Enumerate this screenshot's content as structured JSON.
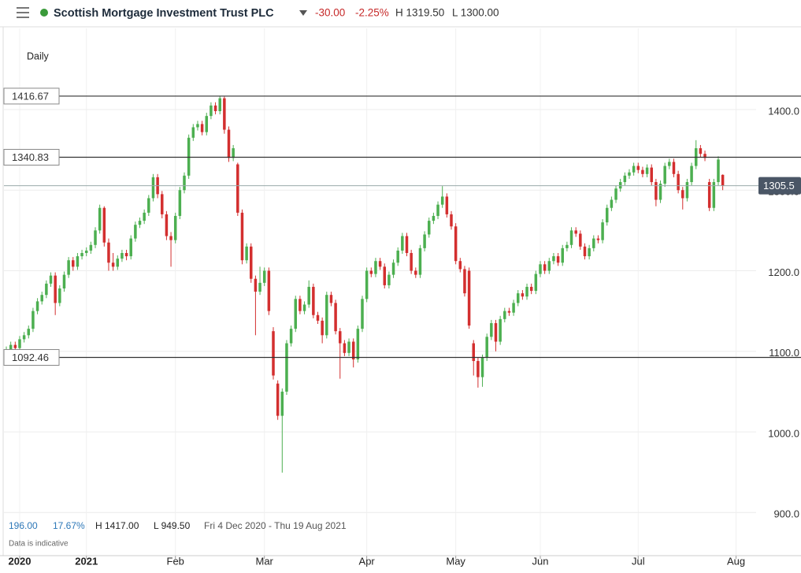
{
  "header": {
    "name": "Scottish Mortgage Investment Trust PLC",
    "change": "-30.00",
    "change_pct": "-2.25%",
    "high": "H 1319.50",
    "low": "L 1300.00"
  },
  "footer": {
    "change": "196.00",
    "change_pct": "17.67%",
    "high": "H 1417.00",
    "low": "L 949.50",
    "range": "Fri 4 Dec 2020 - Thu 19 Aug 2021",
    "note": "Data is indicative"
  },
  "chart_data": {
    "type": "candlestick",
    "interval": "Daily",
    "up_color": "#4caf50",
    "down_color": "#d32f2f",
    "xlim": [
      -1.42,
      168.5
    ],
    "ylim": [
      846.5,
      1500.7
    ],
    "xticks": [
      {
        "value": 3,
        "label": "2020"
      },
      {
        "value": 18,
        "label": "2021"
      },
      {
        "value": 38,
        "label": "Feb"
      },
      {
        "value": 58,
        "label": "Mar"
      },
      {
        "value": 81,
        "label": "Apr"
      },
      {
        "value": 101,
        "label": "May"
      },
      {
        "value": 120,
        "label": "Jun"
      },
      {
        "value": 142,
        "label": "Jul"
      },
      {
        "value": 164,
        "label": "Aug"
      }
    ],
    "yticks": [
      {
        "value": 900,
        "label": "900.0"
      },
      {
        "value": 1000,
        "label": "1000.0"
      },
      {
        "value": 1100,
        "label": "1100.0"
      },
      {
        "value": 1200,
        "label": "1200.0"
      },
      {
        "value": 1300,
        "label": "1300.0"
      },
      {
        "value": 1400,
        "label": "1400.0"
      }
    ],
    "levels": [
      1416.67,
      1340.83,
      1092.46
    ],
    "current_price": 1305.5,
    "candles": [
      [
        1095,
        1106,
        1092,
        1100
      ],
      [
        1100,
        1112,
        1098,
        1108
      ],
      [
        1108,
        1112,
        1100,
        1104
      ],
      [
        1104,
        1119,
        1101,
        1115
      ],
      [
        1115,
        1124,
        1111,
        1120
      ],
      [
        1120,
        1132,
        1116,
        1128
      ],
      [
        1128,
        1154,
        1124,
        1150
      ],
      [
        1150,
        1166,
        1146,
        1162
      ],
      [
        1162,
        1174,
        1158,
        1170
      ],
      [
        1170,
        1188,
        1166,
        1184
      ],
      [
        1184,
        1198,
        1180,
        1194
      ],
      [
        1194,
        1198,
        1145,
        1160
      ],
      [
        1160,
        1182,
        1156,
        1178
      ],
      [
        1178,
        1199,
        1174,
        1195
      ],
      [
        1195,
        1217,
        1191,
        1213
      ],
      [
        1213,
        1217,
        1200,
        1205
      ],
      [
        1205,
        1222,
        1201,
        1218
      ],
      [
        1218,
        1226,
        1214,
        1222
      ],
      [
        1222,
        1229,
        1218,
        1225
      ],
      [
        1225,
        1236,
        1221,
        1232
      ],
      [
        1232,
        1254,
        1228,
        1250
      ],
      [
        1250,
        1282,
        1246,
        1278
      ],
      [
        1278,
        1280,
        1230,
        1235
      ],
      [
        1235,
        1240,
        1200,
        1210
      ],
      [
        1210,
        1222,
        1200,
        1205
      ],
      [
        1205,
        1219,
        1201,
        1215
      ],
      [
        1215,
        1226,
        1211,
        1222
      ],
      [
        1222,
        1226,
        1213,
        1218
      ],
      [
        1218,
        1244,
        1214,
        1240
      ],
      [
        1240,
        1261,
        1236,
        1257
      ],
      [
        1257,
        1266,
        1253,
        1262
      ],
      [
        1262,
        1276,
        1258,
        1272
      ],
      [
        1272,
        1294,
        1268,
        1290
      ],
      [
        1290,
        1320,
        1286,
        1316
      ],
      [
        1316,
        1320,
        1290,
        1295
      ],
      [
        1295,
        1299,
        1265,
        1270
      ],
      [
        1270,
        1274,
        1238,
        1243
      ],
      [
        1243,
        1248,
        1205,
        1238
      ],
      [
        1238,
        1272,
        1234,
        1268
      ],
      [
        1268,
        1304,
        1264,
        1300
      ],
      [
        1300,
        1322,
        1296,
        1318
      ],
      [
        1318,
        1369,
        1314,
        1365
      ],
      [
        1365,
        1382,
        1361,
        1378
      ],
      [
        1378,
        1386,
        1374,
        1382
      ],
      [
        1382,
        1386,
        1368,
        1372
      ],
      [
        1372,
        1396,
        1368,
        1392
      ],
      [
        1392,
        1409,
        1388,
        1405
      ],
      [
        1405,
        1409,
        1394,
        1398
      ],
      [
        1398,
        1417,
        1394,
        1414
      ],
      [
        1414,
        1416,
        1370,
        1375
      ],
      [
        1375,
        1379,
        1335,
        1340
      ],
      [
        1340,
        1356,
        1336,
        1352
      ],
      [
        1332,
        1334,
        1268,
        1272
      ],
      [
        1272,
        1276,
        1208,
        1213
      ],
      [
        1213,
        1234,
        1209,
        1230
      ],
      [
        1230,
        1234,
        1185,
        1190
      ],
      [
        1190,
        1194,
        1120,
        1174
      ],
      [
        1174,
        1205,
        1170,
        1185
      ],
      [
        1185,
        1204,
        1181,
        1200
      ],
      [
        1200,
        1204,
        1145,
        1150
      ],
      [
        1125,
        1130,
        1065,
        1070
      ],
      [
        1060,
        1064,
        1015,
        1020
      ],
      [
        1020,
        1054,
        949.5,
        1050
      ],
      [
        1050,
        1114,
        1046,
        1110
      ],
      [
        1110,
        1132,
        1106,
        1128
      ],
      [
        1128,
        1169,
        1124,
        1165
      ],
      [
        1165,
        1169,
        1146,
        1150
      ],
      [
        1150,
        1162,
        1146,
        1158
      ],
      [
        1158,
        1188,
        1154,
        1180
      ],
      [
        1180,
        1184,
        1141,
        1145
      ],
      [
        1145,
        1149,
        1134,
        1138
      ],
      [
        1138,
        1142,
        1110,
        1120
      ],
      [
        1120,
        1174,
        1116,
        1170
      ],
      [
        1170,
        1174,
        1156,
        1160
      ],
      [
        1160,
        1164,
        1121,
        1125
      ],
      [
        1125,
        1129,
        1066,
        1110
      ],
      [
        1110,
        1114,
        1094,
        1098
      ],
      [
        1098,
        1116,
        1094,
        1112
      ],
      [
        1112,
        1116,
        1080,
        1090
      ],
      [
        1090,
        1132,
        1086,
        1128
      ],
      [
        1128,
        1169,
        1124,
        1165
      ],
      [
        1165,
        1204,
        1161,
        1200
      ],
      [
        1200,
        1204,
        1192,
        1196
      ],
      [
        1196,
        1216,
        1192,
        1212
      ],
      [
        1212,
        1216,
        1201,
        1205
      ],
      [
        1205,
        1209,
        1178,
        1182
      ],
      [
        1182,
        1199,
        1178,
        1195
      ],
      [
        1195,
        1214,
        1191,
        1210
      ],
      [
        1210,
        1229,
        1206,
        1225
      ],
      [
        1225,
        1247,
        1221,
        1243
      ],
      [
        1243,
        1247,
        1218,
        1222
      ],
      [
        1222,
        1226,
        1196,
        1200
      ],
      [
        1200,
        1204,
        1191,
        1195
      ],
      [
        1195,
        1232,
        1191,
        1228
      ],
      [
        1228,
        1249,
        1224,
        1245
      ],
      [
        1245,
        1266,
        1241,
        1262
      ],
      [
        1262,
        1272,
        1258,
        1268
      ],
      [
        1268,
        1286,
        1264,
        1282
      ],
      [
        1282,
        1305,
        1278,
        1292
      ],
      [
        1292,
        1296,
        1266,
        1270
      ],
      [
        1270,
        1274,
        1251,
        1255
      ],
      [
        1255,
        1259,
        1208,
        1212
      ],
      [
        1212,
        1216,
        1198,
        1202
      ],
      [
        1202,
        1206,
        1168,
        1172
      ],
      [
        1200,
        1204,
        1128,
        1132
      ],
      [
        1110,
        1114,
        1070,
        1088
      ],
      [
        1088,
        1092,
        1055,
        1068
      ],
      [
        1068,
        1096,
        1056,
        1092
      ],
      [
        1092,
        1122,
        1088,
        1118
      ],
      [
        1118,
        1139,
        1114,
        1135
      ],
      [
        1135,
        1139,
        1100,
        1112
      ],
      [
        1112,
        1144,
        1108,
        1140
      ],
      [
        1140,
        1154,
        1136,
        1150
      ],
      [
        1150,
        1154,
        1144,
        1148
      ],
      [
        1148,
        1164,
        1144,
        1160
      ],
      [
        1160,
        1176,
        1156,
        1172
      ],
      [
        1172,
        1176,
        1164,
        1168
      ],
      [
        1168,
        1184,
        1164,
        1180
      ],
      [
        1180,
        1184,
        1171,
        1175
      ],
      [
        1175,
        1200,
        1171,
        1196
      ],
      [
        1196,
        1212,
        1192,
        1208
      ],
      [
        1208,
        1212,
        1196,
        1200
      ],
      [
        1200,
        1216,
        1196,
        1212
      ],
      [
        1212,
        1222,
        1208,
        1218
      ],
      [
        1218,
        1222,
        1206,
        1210
      ],
      [
        1210,
        1232,
        1206,
        1228
      ],
      [
        1228,
        1236,
        1224,
        1232
      ],
      [
        1232,
        1254,
        1228,
        1250
      ],
      [
        1250,
        1254,
        1242,
        1246
      ],
      [
        1246,
        1250,
        1226,
        1230
      ],
      [
        1230,
        1234,
        1214,
        1218
      ],
      [
        1218,
        1232,
        1214,
        1228
      ],
      [
        1228,
        1244,
        1224,
        1240
      ],
      [
        1240,
        1244,
        1234,
        1238
      ],
      [
        1238,
        1264,
        1234,
        1260
      ],
      [
        1260,
        1282,
        1256,
        1278
      ],
      [
        1278,
        1292,
        1274,
        1288
      ],
      [
        1288,
        1306,
        1284,
        1302
      ],
      [
        1302,
        1314,
        1298,
        1310
      ],
      [
        1310,
        1322,
        1306,
        1318
      ],
      [
        1318,
        1326,
        1314,
        1322
      ],
      [
        1322,
        1334,
        1318,
        1330
      ],
      [
        1330,
        1334,
        1321,
        1325
      ],
      [
        1325,
        1329,
        1316,
        1320
      ],
      [
        1320,
        1332,
        1316,
        1328
      ],
      [
        1328,
        1332,
        1306,
        1310
      ],
      [
        1310,
        1314,
        1280,
        1288
      ],
      [
        1288,
        1312,
        1284,
        1308
      ],
      [
        1308,
        1334,
        1304,
        1330
      ],
      [
        1330,
        1339,
        1326,
        1335
      ],
      [
        1335,
        1339,
        1316,
        1320
      ],
      [
        1320,
        1324,
        1296,
        1300
      ],
      [
        1300,
        1304,
        1276,
        1290
      ],
      [
        1290,
        1314,
        1286,
        1310
      ],
      [
        1310,
        1334,
        1306,
        1330
      ],
      [
        1330,
        1362,
        1326,
        1352
      ],
      [
        1352,
        1356,
        1341,
        1345
      ],
      [
        1345,
        1349,
        1336,
        1340
      ],
      [
        1310,
        1314,
        1274,
        1278
      ],
      [
        1278,
        1314,
        1274,
        1310
      ],
      [
        1310,
        1342,
        1306,
        1338
      ],
      [
        1319,
        1319.5,
        1300,
        1305.5
      ]
    ]
  }
}
